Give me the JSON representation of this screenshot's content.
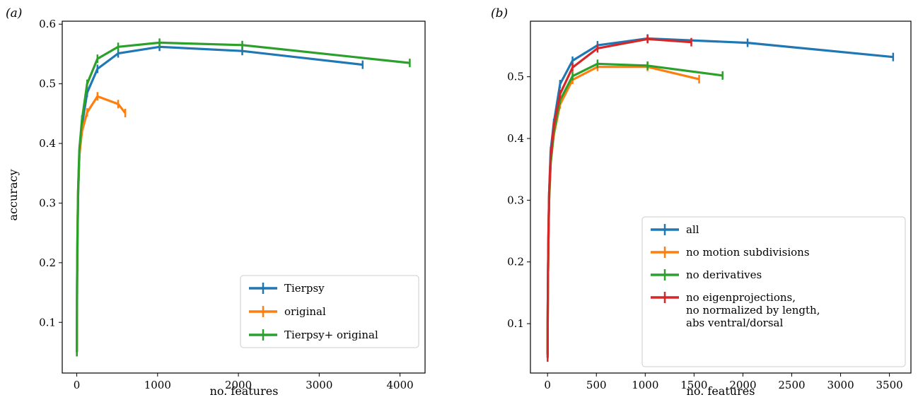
{
  "chart_data": [
    {
      "type": "line",
      "panel_label": "(a)",
      "xlabel": "no. features",
      "ylabel": "accuracy",
      "xlim": [
        -180,
        4310
      ],
      "ylim": [
        0.015,
        0.605
      ],
      "xticks": [
        0,
        1000,
        2000,
        3000,
        4000
      ],
      "yticks": [
        0.1,
        0.2,
        0.3,
        0.4,
        0.5,
        0.6
      ],
      "legend_position": "lower right",
      "grid": false,
      "series": [
        {
          "name": "Tierpsy",
          "color": "#1f77b4",
          "x": [
            1,
            2,
            4,
            8,
            16,
            32,
            64,
            128,
            256,
            512,
            1024,
            2048,
            3538
          ],
          "y": [
            0.05,
            0.1,
            0.16,
            0.23,
            0.31,
            0.38,
            0.43,
            0.485,
            0.525,
            0.551,
            0.562,
            0.555,
            0.532
          ]
        },
        {
          "name": "original",
          "color": "#ff7f0e",
          "x": [
            1,
            2,
            4,
            8,
            16,
            32,
            64,
            128,
            256,
            512,
            600
          ],
          "y": [
            0.05,
            0.1,
            0.17,
            0.24,
            0.32,
            0.38,
            0.42,
            0.452,
            0.479,
            0.466,
            0.451
          ]
        },
        {
          "name": "Tierpsy+ original",
          "color": "#2ca02c",
          "x": [
            1,
            2,
            4,
            8,
            16,
            32,
            64,
            128,
            256,
            512,
            1024,
            2048,
            4121
          ],
          "y": [
            0.05,
            0.1,
            0.17,
            0.24,
            0.32,
            0.39,
            0.44,
            0.5,
            0.542,
            0.562,
            0.569,
            0.565,
            0.535
          ]
        }
      ]
    },
    {
      "type": "line",
      "panel_label": "(b)",
      "xlabel": "no. features",
      "ylabel": "",
      "xlim": [
        -175,
        3720
      ],
      "ylim": [
        0.02,
        0.59
      ],
      "xticks": [
        0,
        500,
        1000,
        1500,
        2000,
        2500,
        3000,
        3500
      ],
      "yticks": [
        0.1,
        0.2,
        0.3,
        0.4,
        0.5
      ],
      "legend_position": "lower right",
      "grid": false,
      "series": [
        {
          "name": "all",
          "color": "#1f77b4",
          "x": [
            1,
            2,
            4,
            8,
            16,
            32,
            64,
            128,
            256,
            512,
            1024,
            2048,
            3538
          ],
          "y": [
            0.05,
            0.1,
            0.16,
            0.23,
            0.31,
            0.38,
            0.425,
            0.488,
            0.526,
            0.551,
            0.562,
            0.555,
            0.532
          ]
        },
        {
          "name": "no motion subdivisions",
          "color": "#ff7f0e",
          "x": [
            1,
            2,
            4,
            8,
            16,
            32,
            64,
            128,
            256,
            512,
            1024,
            1552
          ],
          "y": [
            0.05,
            0.1,
            0.16,
            0.23,
            0.3,
            0.36,
            0.405,
            0.455,
            0.495,
            0.516,
            0.516,
            0.496
          ]
        },
        {
          "name": "no derivatives",
          "color": "#2ca02c",
          "x": [
            1,
            2,
            4,
            8,
            16,
            32,
            64,
            128,
            256,
            512,
            1024,
            1792
          ],
          "y": [
            0.05,
            0.1,
            0.16,
            0.23,
            0.3,
            0.36,
            0.41,
            0.462,
            0.501,
            0.521,
            0.518,
            0.502
          ]
        },
        {
          "name": "no eigenprojections,\nno normalized by length,\nabs ventral/dorsal",
          "color": "#d62728",
          "x": [
            1,
            2,
            4,
            8,
            16,
            32,
            64,
            128,
            256,
            512,
            1024,
            1472
          ],
          "y": [
            0.045,
            0.1,
            0.16,
            0.23,
            0.31,
            0.37,
            0.42,
            0.472,
            0.515,
            0.546,
            0.561,
            0.556
          ]
        }
      ]
    }
  ]
}
